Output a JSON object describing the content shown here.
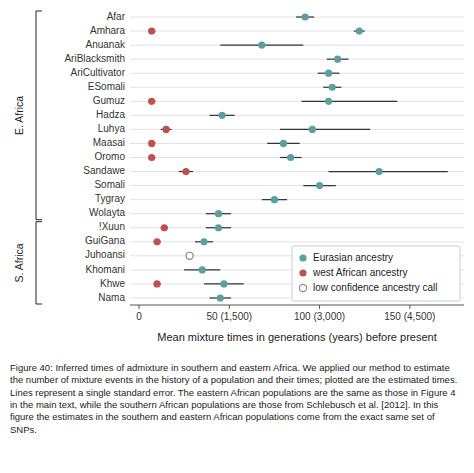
{
  "chart_data": {
    "type": "dot",
    "xlabel": "Mean mixture times in generations (years) before present",
    "categories": [
      "Afar",
      "Amhara",
      "Anuanak",
      "AriBlacksmith",
      "AriCultivator",
      "ESomali",
      "Gumuz",
      "Hadza",
      "Luhya",
      "Maasai",
      "Oromo",
      "Sandawe",
      "Somali",
      "Tygray",
      "Wolayta",
      "!Xuun",
      "GuiGana",
      "Juhoansi",
      "Khomani",
      "Khwe",
      "Nama"
    ],
    "groups": [
      {
        "label": "E. Africa",
        "count": 15
      },
      {
        "label": "S. Africa",
        "count": 6
      }
    ],
    "xlim": [
      -5,
      180
    ],
    "xticks": [
      0,
      {
        "value": 50,
        "label": "50 (1,500)"
      },
      {
        "value": 100,
        "label": "100 (3,000)"
      },
      {
        "value": 150,
        "label": "150 (4,500)"
      }
    ],
    "grid": true,
    "legend": "lower right",
    "series": [
      {
        "name": "Eurasian ancestry",
        "color": "#5b9fa0",
        "marker": "circle",
        "values": [
          92,
          122,
          68,
          110,
          105,
          107,
          105,
          46,
          96,
          80,
          84,
          133,
          100,
          75,
          44,
          44,
          36,
          28,
          35,
          47,
          45
        ],
        "error_lo": [
          5,
          3,
          23,
          6,
          6,
          5,
          15,
          7,
          18,
          9,
          6,
          28,
          9,
          7,
          7,
          7,
          5,
          0,
          10,
          11,
          6
        ],
        "error_hi": [
          5,
          3,
          23,
          6,
          6,
          5,
          38,
          7,
          32,
          9,
          6,
          38,
          9,
          7,
          7,
          7,
          5,
          0,
          10,
          11,
          6
        ]
      },
      {
        "name": "west African ancestry",
        "color": "#c0504d",
        "marker": "circle",
        "values": [
          null,
          7,
          null,
          null,
          null,
          null,
          7,
          null,
          15,
          7,
          7,
          26,
          null,
          null,
          null,
          14,
          10,
          null,
          null,
          10,
          null
        ],
        "error_lo": [
          null,
          2,
          null,
          null,
          null,
          null,
          2,
          null,
          3,
          2,
          2,
          4,
          null,
          null,
          null,
          2,
          2,
          null,
          null,
          2,
          null
        ],
        "error_hi": [
          null,
          2,
          null,
          null,
          null,
          null,
          2,
          null,
          3,
          2,
          2,
          4,
          null,
          null,
          null,
          2,
          2,
          null,
          null,
          2,
          null
        ]
      },
      {
        "name": "low confidence ancestry call",
        "color": "#ffffff",
        "marker": "open_circle",
        "values": [
          null,
          null,
          null,
          null,
          null,
          null,
          null,
          null,
          null,
          null,
          null,
          null,
          null,
          null,
          null,
          null,
          null,
          28,
          null,
          null,
          null
        ]
      }
    ],
    "caption": "Figure 40:  Inferred times of admixture in southern and eastern Africa.  We applied our method to estimate the number of mixture events in the history of a population and their times; plotted are the estimated times.  Lines represent a single standard error.  The eastern African populations are the same as those in Figure 4 in the main text, while the southern African populations are those from Schlebusch et al. [2012].  In this figure the estimates in the southern and eastern African populations come from the exact same set of SNPs."
  }
}
